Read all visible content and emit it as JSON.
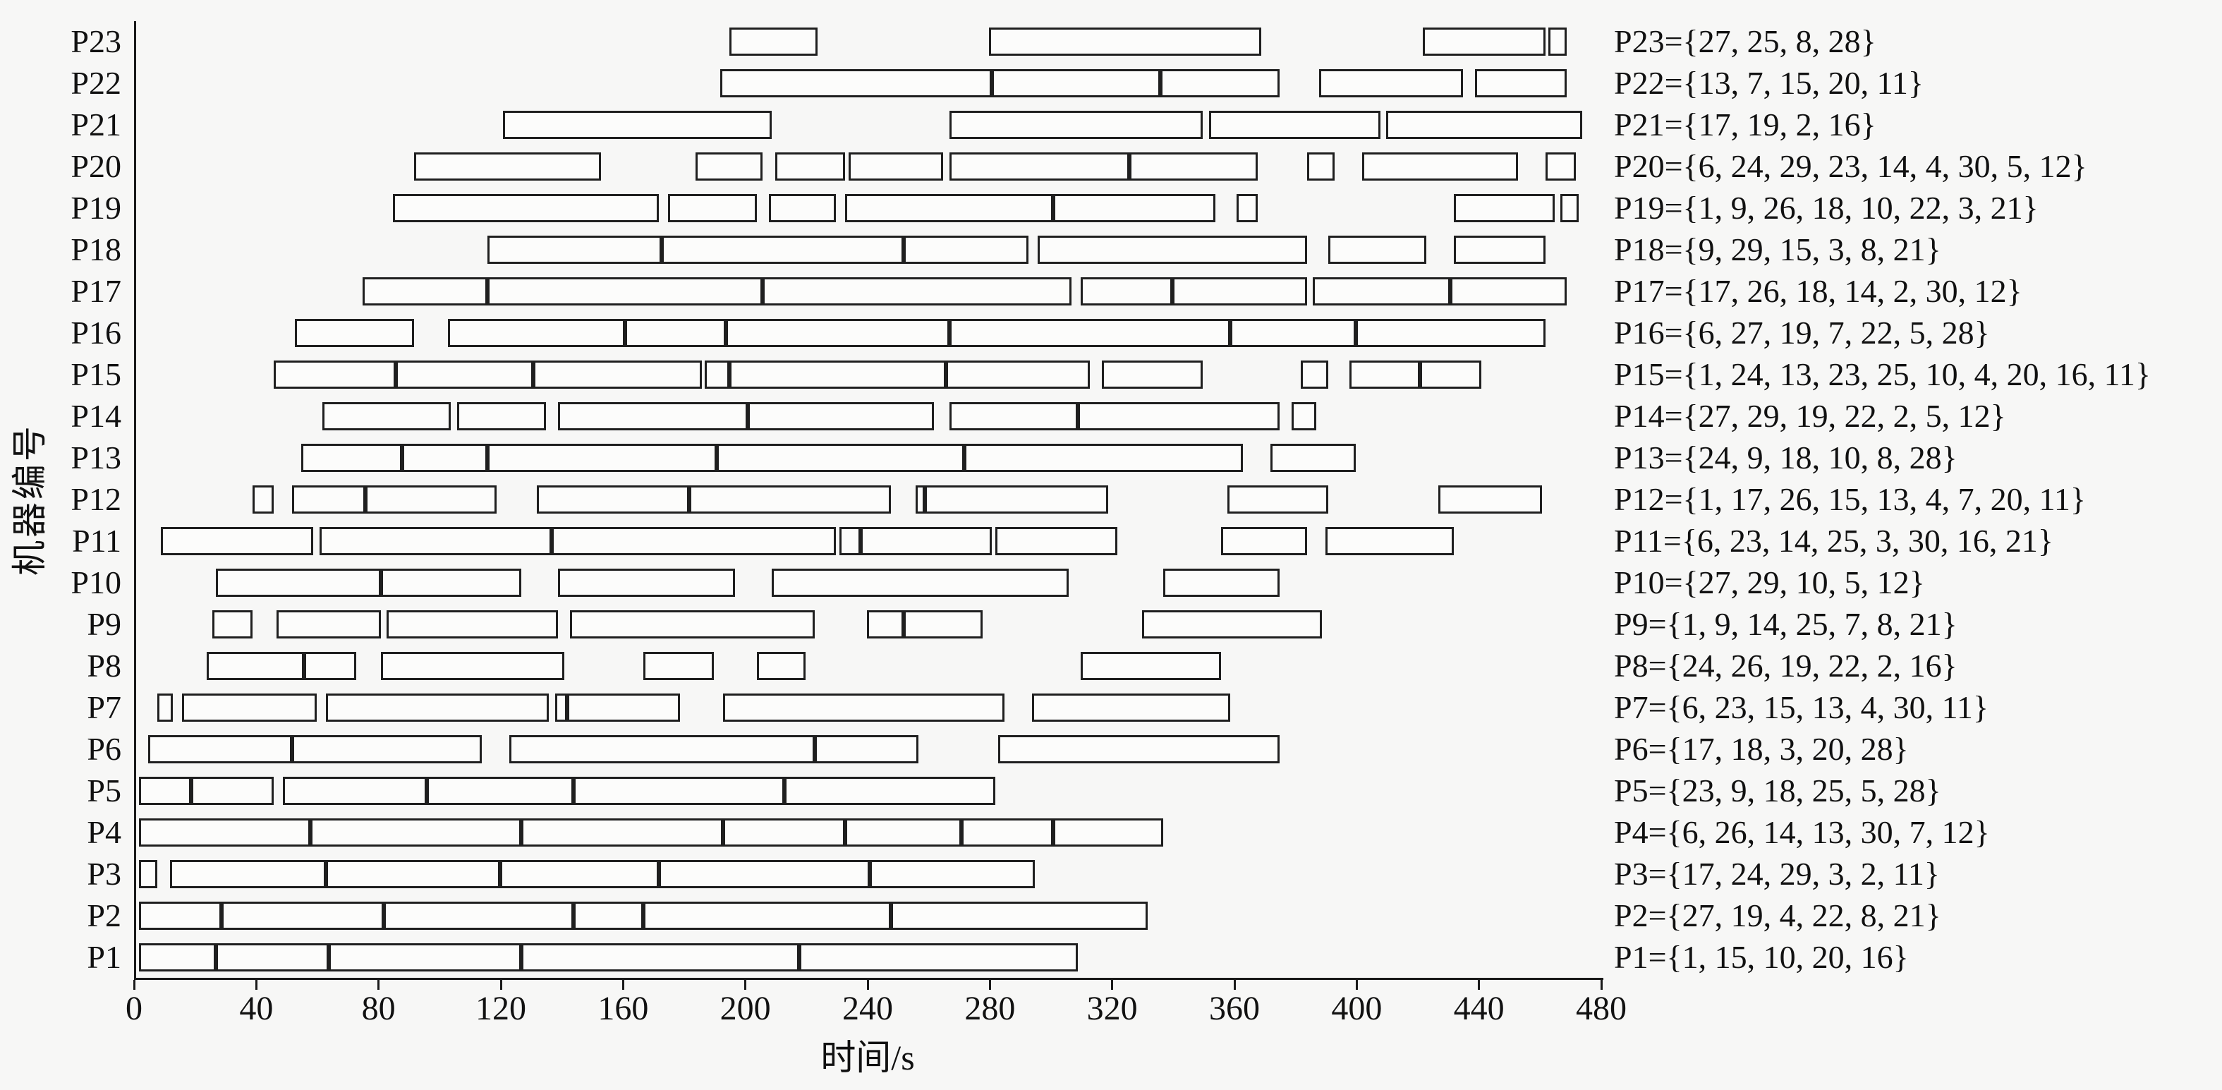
{
  "figure": {
    "background": "#f7f7f6",
    "axis_color": "#1a1a1a",
    "bar_fill": "#fcfcfb",
    "bar_border": "#1f1f1f"
  },
  "chart_data": {
    "type": "gantt",
    "title": "",
    "xlabel": "时间/s",
    "ylabel": "机器编号",
    "xlim": [
      0,
      480
    ],
    "xticks": [
      0,
      40,
      80,
      120,
      160,
      200,
      240,
      280,
      320,
      360,
      400,
      440,
      480
    ],
    "grid": false,
    "legend_position": "right",
    "machines": [
      {
        "name": "P23",
        "jobs": [
          27,
          25,
          8,
          28
        ],
        "label": "P23={27, 25, 8, 28}",
        "segments": [
          [
            194,
            223
          ],
          [
            279,
            368
          ],
          [
            421,
            461
          ],
          [
            462,
            468
          ]
        ]
      },
      {
        "name": "P22",
        "jobs": [
          13,
          7,
          15,
          20,
          11
        ],
        "label": "P22={13, 7, 15, 20, 11}",
        "segments": [
          [
            191,
            280
          ],
          [
            280,
            335
          ],
          [
            335,
            374
          ],
          [
            387,
            434
          ],
          [
            438,
            468
          ]
        ]
      },
      {
        "name": "P21",
        "jobs": [
          17,
          19,
          2,
          16
        ],
        "label": "P21={17, 19, 2, 16}",
        "segments": [
          [
            120,
            208
          ],
          [
            266,
            349
          ],
          [
            351,
            407
          ],
          [
            409,
            473
          ]
        ]
      },
      {
        "name": "P20",
        "jobs": [
          6,
          24,
          29,
          23,
          14,
          4,
          30,
          5,
          12
        ],
        "label": "P20={6, 24, 29, 23, 14, 4, 30, 5, 12}",
        "segments": [
          [
            91,
            152
          ],
          [
            183,
            205
          ],
          [
            209,
            232
          ],
          [
            233,
            264
          ],
          [
            266,
            325
          ],
          [
            325,
            367
          ],
          [
            383,
            392
          ],
          [
            401,
            452
          ],
          [
            461,
            471
          ]
        ]
      },
      {
        "name": "P19",
        "jobs": [
          1,
          9,
          26,
          18,
          10,
          22,
          3,
          21
        ],
        "label": "P19={1, 9, 26, 18, 10, 22, 3, 21}",
        "segments": [
          [
            84,
            171
          ],
          [
            174,
            203
          ],
          [
            207,
            229
          ],
          [
            232,
            300
          ],
          [
            300,
            353
          ],
          [
            360,
            367
          ],
          [
            431,
            464
          ],
          [
            466,
            472
          ]
        ]
      },
      {
        "name": "P18",
        "jobs": [
          9,
          29,
          15,
          3,
          8,
          21
        ],
        "label": "P18={9, 29, 15, 3, 8, 21}",
        "segments": [
          [
            115,
            172
          ],
          [
            172,
            251
          ],
          [
            251,
            292
          ],
          [
            295,
            383
          ],
          [
            390,
            422
          ],
          [
            431,
            461
          ]
        ]
      },
      {
        "name": "P17",
        "jobs": [
          17,
          26,
          18,
          14,
          2,
          30,
          12
        ],
        "label": "P17={17, 26, 18, 14, 2, 30, 12}",
        "segments": [
          [
            74,
            115
          ],
          [
            115,
            205
          ],
          [
            205,
            306
          ],
          [
            309,
            339
          ],
          [
            339,
            383
          ],
          [
            385,
            430
          ],
          [
            430,
            468
          ]
        ]
      },
      {
        "name": "P16",
        "jobs": [
          6,
          27,
          19,
          7,
          22,
          5,
          28
        ],
        "label": "P16={6, 27, 19, 7, 22, 5, 28}",
        "segments": [
          [
            52,
            91
          ],
          [
            102,
            160
          ],
          [
            160,
            193
          ],
          [
            193,
            266
          ],
          [
            266,
            358
          ],
          [
            358,
            399
          ],
          [
            399,
            461
          ]
        ]
      },
      {
        "name": "P15",
        "jobs": [
          1,
          24,
          13,
          23,
          25,
          10,
          4,
          20,
          16,
          11
        ],
        "label": "P15={1, 24, 13, 23, 25, 10, 4, 20, 16, 11}",
        "segments": [
          [
            45,
            85
          ],
          [
            85,
            130
          ],
          [
            130,
            185
          ],
          [
            186,
            194
          ],
          [
            194,
            265
          ],
          [
            265,
            312
          ],
          [
            316,
            349
          ],
          [
            381,
            390
          ],
          [
            397,
            420
          ],
          [
            420,
            440
          ]
        ]
      },
      {
        "name": "P14",
        "jobs": [
          27,
          29,
          19,
          22,
          2,
          5,
          12
        ],
        "label": "P14={27, 29, 19, 22, 2, 5, 12}",
        "segments": [
          [
            61,
            103
          ],
          [
            105,
            134
          ],
          [
            138,
            200
          ],
          [
            200,
            261
          ],
          [
            266,
            308
          ],
          [
            308,
            374
          ],
          [
            378,
            386
          ]
        ]
      },
      {
        "name": "P13",
        "jobs": [
          24,
          9,
          18,
          10,
          8,
          28
        ],
        "label": "P13={24, 9, 18, 10, 8, 28}",
        "segments": [
          [
            54,
            87
          ],
          [
            87,
            115
          ],
          [
            115,
            190
          ],
          [
            190,
            271
          ],
          [
            271,
            362
          ],
          [
            371,
            399
          ]
        ]
      },
      {
        "name": "P12",
        "jobs": [
          1,
          17,
          26,
          15,
          13,
          4,
          7,
          20,
          11
        ],
        "label": "P12={1, 17, 26, 15, 13, 4, 7, 20, 11}",
        "segments": [
          [
            38,
            45
          ],
          [
            51,
            75
          ],
          [
            75,
            118
          ],
          [
            131,
            181
          ],
          [
            181,
            247
          ],
          [
            255,
            258
          ],
          [
            258,
            318
          ],
          [
            357,
            390
          ],
          [
            426,
            460
          ]
        ]
      },
      {
        "name": "P11",
        "jobs": [
          6,
          23,
          14,
          25,
          3,
          30,
          16,
          21
        ],
        "label": "P11={6, 23, 14, 25, 3, 30, 16, 21}",
        "segments": [
          [
            8,
            58
          ],
          [
            60,
            136
          ],
          [
            136,
            229
          ],
          [
            230,
            237
          ],
          [
            237,
            280
          ],
          [
            281,
            321
          ],
          [
            355,
            383
          ],
          [
            389,
            431
          ]
        ]
      },
      {
        "name": "P10",
        "jobs": [
          27,
          29,
          10,
          5,
          12
        ],
        "label": "P10={27, 29, 10, 5, 12}",
        "segments": [
          [
            26,
            80
          ],
          [
            80,
            126
          ],
          [
            138,
            196
          ],
          [
            208,
            305
          ],
          [
            336,
            374
          ]
        ]
      },
      {
        "name": "P9",
        "jobs": [
          1,
          9,
          14,
          25,
          7,
          8,
          21
        ],
        "label": "P9={1, 9, 14, 25, 7, 8, 21}",
        "segments": [
          [
            25,
            38
          ],
          [
            46,
            80
          ],
          [
            82,
            138
          ],
          [
            142,
            222
          ],
          [
            239,
            251
          ],
          [
            251,
            277
          ],
          [
            329,
            388
          ]
        ]
      },
      {
        "name": "P8",
        "jobs": [
          24,
          26,
          19,
          22,
          2,
          16
        ],
        "label": "P8={24, 26, 19, 22, 2, 16}",
        "segments": [
          [
            23,
            55
          ],
          [
            55,
            72
          ],
          [
            80,
            140
          ],
          [
            166,
            189
          ],
          [
            203,
            219
          ],
          [
            309,
            355
          ]
        ]
      },
      {
        "name": "P7",
        "jobs": [
          6,
          23,
          15,
          13,
          4,
          30,
          11
        ],
        "label": "P7={6, 23, 15, 13, 4, 30, 11}",
        "segments": [
          [
            7,
            12
          ],
          [
            15,
            59
          ],
          [
            62,
            135
          ],
          [
            137,
            141
          ],
          [
            141,
            178
          ],
          [
            192,
            284
          ],
          [
            293,
            358
          ]
        ]
      },
      {
        "name": "P6",
        "jobs": [
          17,
          18,
          3,
          20,
          28
        ],
        "label": "P6={17, 18, 3, 20, 28}",
        "segments": [
          [
            4,
            51
          ],
          [
            51,
            113
          ],
          [
            122,
            222
          ],
          [
            222,
            256
          ],
          [
            282,
            374
          ]
        ]
      },
      {
        "name": "P5",
        "jobs": [
          23,
          9,
          18,
          25,
          5,
          28
        ],
        "label": "P5={23, 9, 18, 25, 5, 28}",
        "segments": [
          [
            1,
            18
          ],
          [
            18,
            45
          ],
          [
            48,
            95
          ],
          [
            95,
            143
          ],
          [
            143,
            212
          ],
          [
            212,
            281
          ]
        ]
      },
      {
        "name": "P4",
        "jobs": [
          6,
          26,
          14,
          13,
          30,
          7,
          12
        ],
        "label": "P4={6, 26, 14, 13, 30, 7, 12}",
        "segments": [
          [
            1,
            57
          ],
          [
            57,
            126
          ],
          [
            126,
            192
          ],
          [
            192,
            232
          ],
          [
            232,
            270
          ],
          [
            270,
            300
          ],
          [
            300,
            336
          ]
        ]
      },
      {
        "name": "P3",
        "jobs": [
          17,
          24,
          29,
          3,
          2,
          11
        ],
        "label": "P3={17, 24, 29, 3, 2, 11}",
        "segments": [
          [
            1,
            7
          ],
          [
            11,
            62
          ],
          [
            62,
            119
          ],
          [
            119,
            171
          ],
          [
            171,
            240
          ],
          [
            240,
            294
          ]
        ]
      },
      {
        "name": "P2",
        "jobs": [
          27,
          19,
          4,
          22,
          8,
          21
        ],
        "label": "P2={27, 19, 4, 22, 8, 21}",
        "segments": [
          [
            1,
            28
          ],
          [
            28,
            81
          ],
          [
            81,
            143
          ],
          [
            143,
            166
          ],
          [
            166,
            247
          ],
          [
            247,
            331
          ]
        ]
      },
      {
        "name": "P1",
        "jobs": [
          1,
          15,
          10,
          20,
          16
        ],
        "label": "P1={1, 15, 10, 20, 16}",
        "segments": [
          [
            1,
            26
          ],
          [
            26,
            63
          ],
          [
            63,
            126
          ],
          [
            126,
            217
          ],
          [
            217,
            308
          ]
        ]
      }
    ]
  }
}
